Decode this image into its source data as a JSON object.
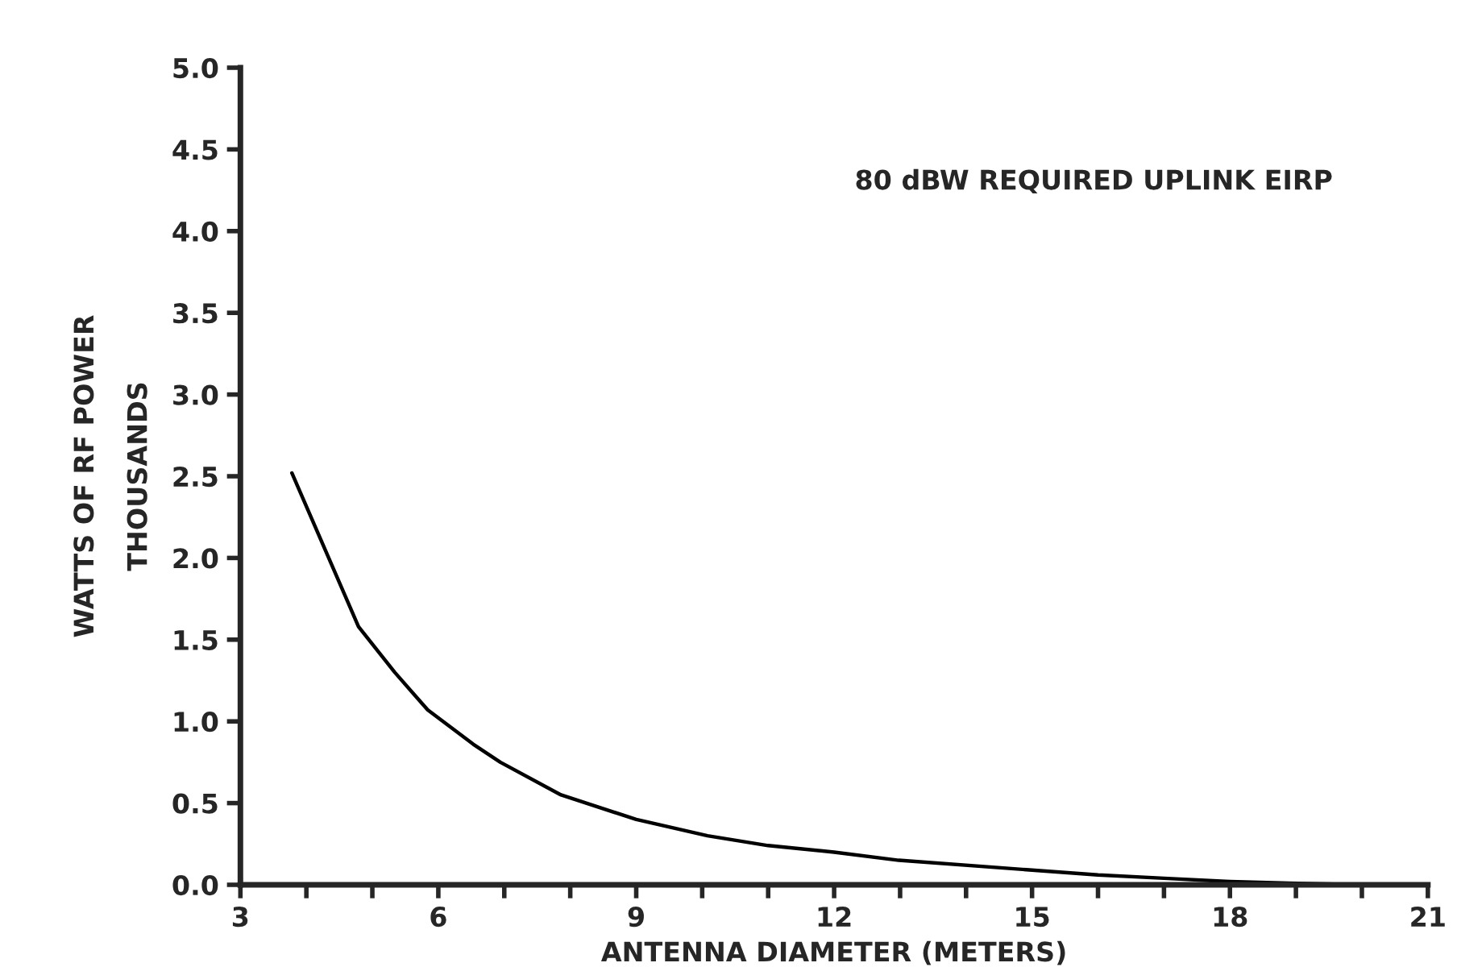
{
  "chart_data": {
    "type": "line",
    "xlabel": "ANTENNA DIAMETER (METERS)",
    "annotations": [
      "80 dBW REQUIRED UPLINK EIRP",
      "THOUSANDS",
      "WATTS OF RF POWER"
    ],
    "x": [
      3.78,
      4.79,
      5.34,
      5.84,
      6.53,
      6.94,
      7.86,
      9,
      10.08,
      11,
      12,
      12.98,
      15,
      16,
      17,
      18,
      18.9,
      20
    ],
    "series": [
      {
        "color": "#000000",
        "values": [
          2.52,
          1.58,
          1.3,
          1.07,
          0.86,
          0.75,
          0.55,
          0.4,
          0.3,
          0.24,
          0.2,
          0.15,
          0.09,
          0.06,
          0.04,
          0.02,
          0.01,
          0.0
        ]
      }
    ],
    "xlim": [
      3,
      21
    ],
    "ylim": [
      0,
      5
    ],
    "xticks": [
      3,
      {
        "value": 4,
        "label": null
      },
      {
        "value": 5,
        "label": null
      },
      6,
      {
        "value": 7,
        "label": null
      },
      {
        "value": 8,
        "label": null
      },
      9,
      {
        "value": 10,
        "label": null
      },
      {
        "value": 11,
        "label": null
      },
      12,
      {
        "value": 13,
        "label": null
      },
      {
        "value": 14,
        "label": null
      },
      15,
      {
        "value": 16,
        "label": null
      },
      {
        "value": 17,
        "label": null
      },
      18,
      {
        "value": 19,
        "label": null
      },
      {
        "value": 20,
        "label": null
      },
      21
    ],
    "yticks": [
      {
        "value": 0,
        "label": "0.0"
      },
      {
        "value": 0.5,
        "label": "0.5"
      },
      {
        "value": 1,
        "label": "1.0"
      },
      {
        "value": 1.5,
        "label": "1.5"
      },
      {
        "value": 2,
        "label": "2.0"
      },
      {
        "value": 2.5,
        "label": "2.5"
      },
      {
        "value": 3,
        "label": "3.0"
      },
      {
        "value": 3.5,
        "label": "3.5"
      },
      {
        "value": 4,
        "label": "4.0"
      },
      {
        "value": 4.5,
        "label": "4.5"
      },
      {
        "value": 5,
        "label": "5.0"
      }
    ],
    "grid": false,
    "marker": "none",
    "line_style": "solid"
  }
}
